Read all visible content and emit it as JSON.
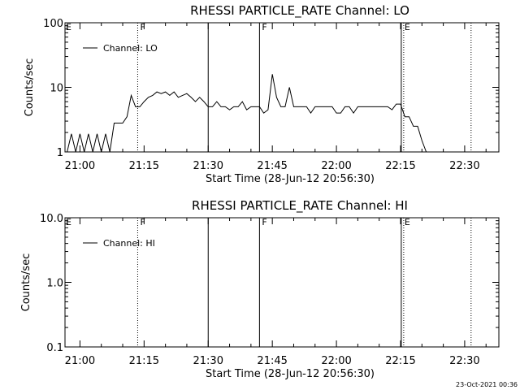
{
  "chart_data": [
    {
      "type": "line",
      "title": "RHESSI PARTICLE_RATE Channel: LO",
      "xlabel": "Start Time (28-Jun-12 20:56:30)",
      "ylabel": "Counts/sec",
      "yscale": "log",
      "ylim": [
        1,
        100
      ],
      "yticks": [
        "1",
        "10",
        "100"
      ],
      "xlim": [
        "20:56:30",
        "22:38:00"
      ],
      "xticks": [
        "21:00",
        "21:15",
        "21:30",
        "21:45",
        "22:00",
        "22:15",
        "22:30"
      ],
      "legend": {
        "entry": "Channel: LO",
        "placement": "top-left"
      },
      "series": [
        {
          "name": "Channel: LO",
          "x": [
            "20:57",
            "20:58",
            "20:59",
            "21:00",
            "21:01",
            "21:02",
            "21:03",
            "21:04",
            "21:05",
            "21:06",
            "21:07",
            "21:08",
            "21:09",
            "21:10",
            "21:11",
            "21:12",
            "21:13",
            "21:14",
            "21:15",
            "21:16",
            "21:17",
            "21:18",
            "21:19",
            "21:20",
            "21:21",
            "21:22",
            "21:23",
            "21:24",
            "21:25",
            "21:26",
            "21:27",
            "21:28",
            "21:29",
            "21:30",
            "21:31",
            "21:32",
            "21:33",
            "21:34",
            "21:35",
            "21:36",
            "21:37",
            "21:38",
            "21:39",
            "21:40",
            "21:41",
            "21:42",
            "21:43",
            "21:44",
            "21:45",
            "21:46",
            "21:47",
            "21:48",
            "21:49",
            "21:50",
            "21:51",
            "21:52",
            "21:53",
            "21:54",
            "21:55",
            "21:56",
            "21:57",
            "21:58",
            "21:59",
            "22:00",
            "22:01",
            "22:02",
            "22:03",
            "22:04",
            "22:05",
            "22:06",
            "22:07",
            "22:08",
            "22:09",
            "22:10",
            "22:11",
            "22:12",
            "22:13",
            "22:14",
            "22:15",
            "22:16",
            "22:17",
            "22:18",
            "22:19",
            "22:20",
            "22:21"
          ],
          "y": [
            1,
            1.9,
            1,
            1.9,
            1,
            1.9,
            1,
            1.9,
            1,
            1.9,
            1,
            2.8,
            2.8,
            2.8,
            3.5,
            7.5,
            5,
            5,
            6,
            7,
            7.5,
            8.5,
            8,
            8.5,
            7.5,
            8.5,
            7,
            7.5,
            8,
            7,
            6,
            7,
            6,
            5,
            5,
            6,
            5,
            5,
            4.5,
            5,
            5,
            6,
            4.5,
            5,
            5,
            5,
            4,
            4.5,
            16,
            7,
            5,
            5,
            10,
            5,
            5,
            5,
            5,
            4,
            5,
            5,
            5,
            5,
            5,
            4,
            4,
            5,
            5,
            4,
            5,
            5,
            5,
            5,
            5,
            5,
            5,
            5,
            4.5,
            5.5,
            5.5,
            3.5,
            3.5,
            2.5,
            2.5,
            1.5,
            1
          ]
        }
      ],
      "markers": [
        {
          "label": "F",
          "time": "21:13:30",
          "style": "dotted"
        },
        {
          "label": "",
          "time": "21:30:00",
          "style": "solid"
        },
        {
          "label": "F",
          "time": "21:42:00",
          "style": "solid"
        },
        {
          "label": "E",
          "time": "22:15:10",
          "style": "both"
        },
        {
          "label": "",
          "time": "22:31:30",
          "style": "dotted"
        }
      ],
      "corner_label": "E"
    },
    {
      "type": "line",
      "title": "RHESSI PARTICLE_RATE Channel: HI",
      "xlabel": "Start Time (28-Jun-12 20:56:30)",
      "ylabel": "Counts/sec",
      "yscale": "log",
      "ylim": [
        0.1,
        10
      ],
      "yticks": [
        "0.1",
        "1.0",
        "10.0"
      ],
      "xlim": [
        "20:56:30",
        "22:38:00"
      ],
      "xticks": [
        "21:00",
        "21:15",
        "21:30",
        "21:45",
        "22:00",
        "22:15",
        "22:30"
      ],
      "legend": {
        "entry": "Channel: HI",
        "placement": "top-left"
      },
      "series": [
        {
          "name": "Channel: HI",
          "x": [],
          "y": []
        }
      ],
      "markers": [
        {
          "label": "F",
          "time": "21:13:30",
          "style": "dotted"
        },
        {
          "label": "",
          "time": "21:30:00",
          "style": "solid"
        },
        {
          "label": "F",
          "time": "21:42:00",
          "style": "solid"
        },
        {
          "label": "E",
          "time": "22:15:10",
          "style": "both"
        },
        {
          "label": "",
          "time": "22:31:30",
          "style": "dotted"
        }
      ],
      "corner_label": "E"
    }
  ],
  "footer": {
    "timestamp": "23-Oct-2021 00:36"
  }
}
